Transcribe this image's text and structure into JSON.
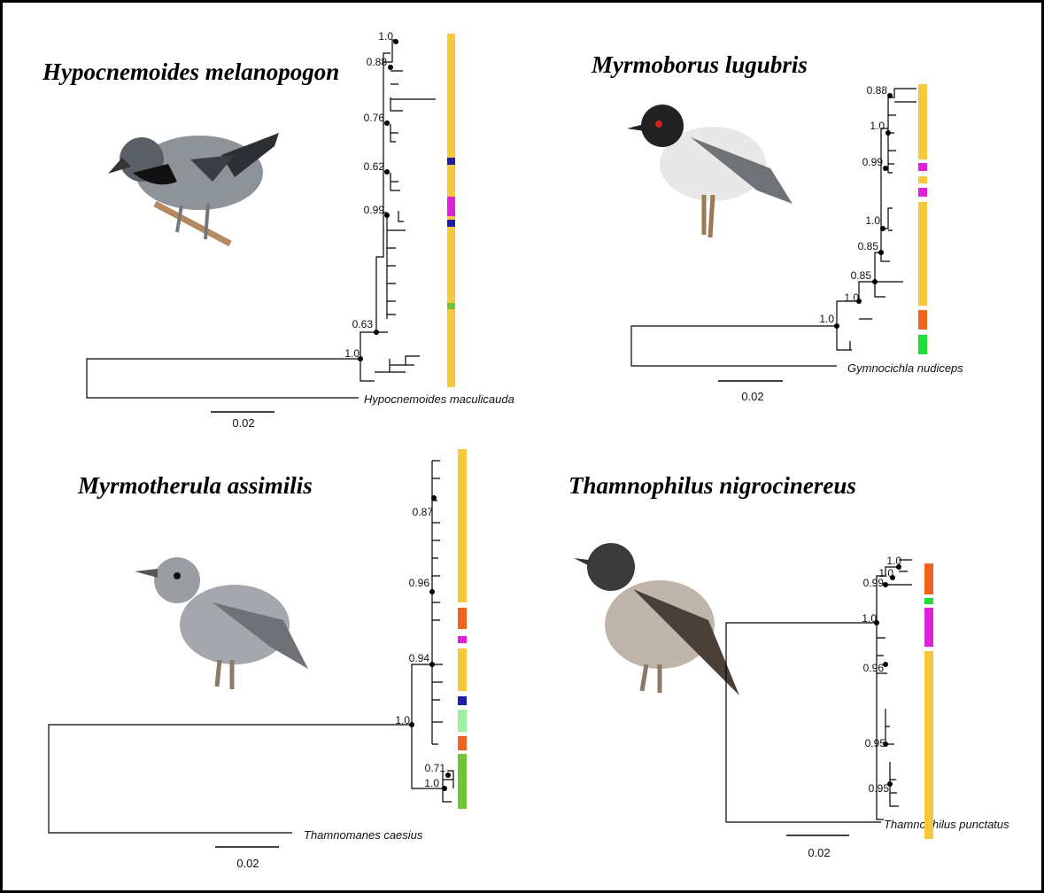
{
  "panels": [
    {
      "title": "Hypocnemoides melanopogon",
      "support_values": [
        "1.0",
        "0.88",
        "0.76",
        "0.62",
        "0.99",
        "0.63",
        "1.0"
      ],
      "outgroup": "Hypocnemoides maculicauda",
      "scale_label": "0.02"
    },
    {
      "title": "Myrmoborus lugubris",
      "support_values": [
        "0.88",
        "1.0",
        "0.99",
        "1.0",
        "0.85",
        "0.85",
        "1.0",
        "1.0"
      ],
      "outgroup": "Gymnocichla nudiceps",
      "scale_label": "0.02"
    },
    {
      "title": "Myrmotherula assimilis",
      "support_values": [
        "0.87",
        "0.96",
        "0.94",
        "1.0",
        "0.71",
        "1.0"
      ],
      "outgroup": "Thamnomanes caesius",
      "scale_label": "0.02"
    },
    {
      "title": "Thamnophilus nigrocinereus",
      "support_values": [
        "1.0",
        "1.0",
        "0.99",
        "1.0",
        "0.96",
        "0.95",
        "0.95"
      ],
      "outgroup": "Thamnophilus punctatus",
      "scale_label": "0.02"
    }
  ]
}
